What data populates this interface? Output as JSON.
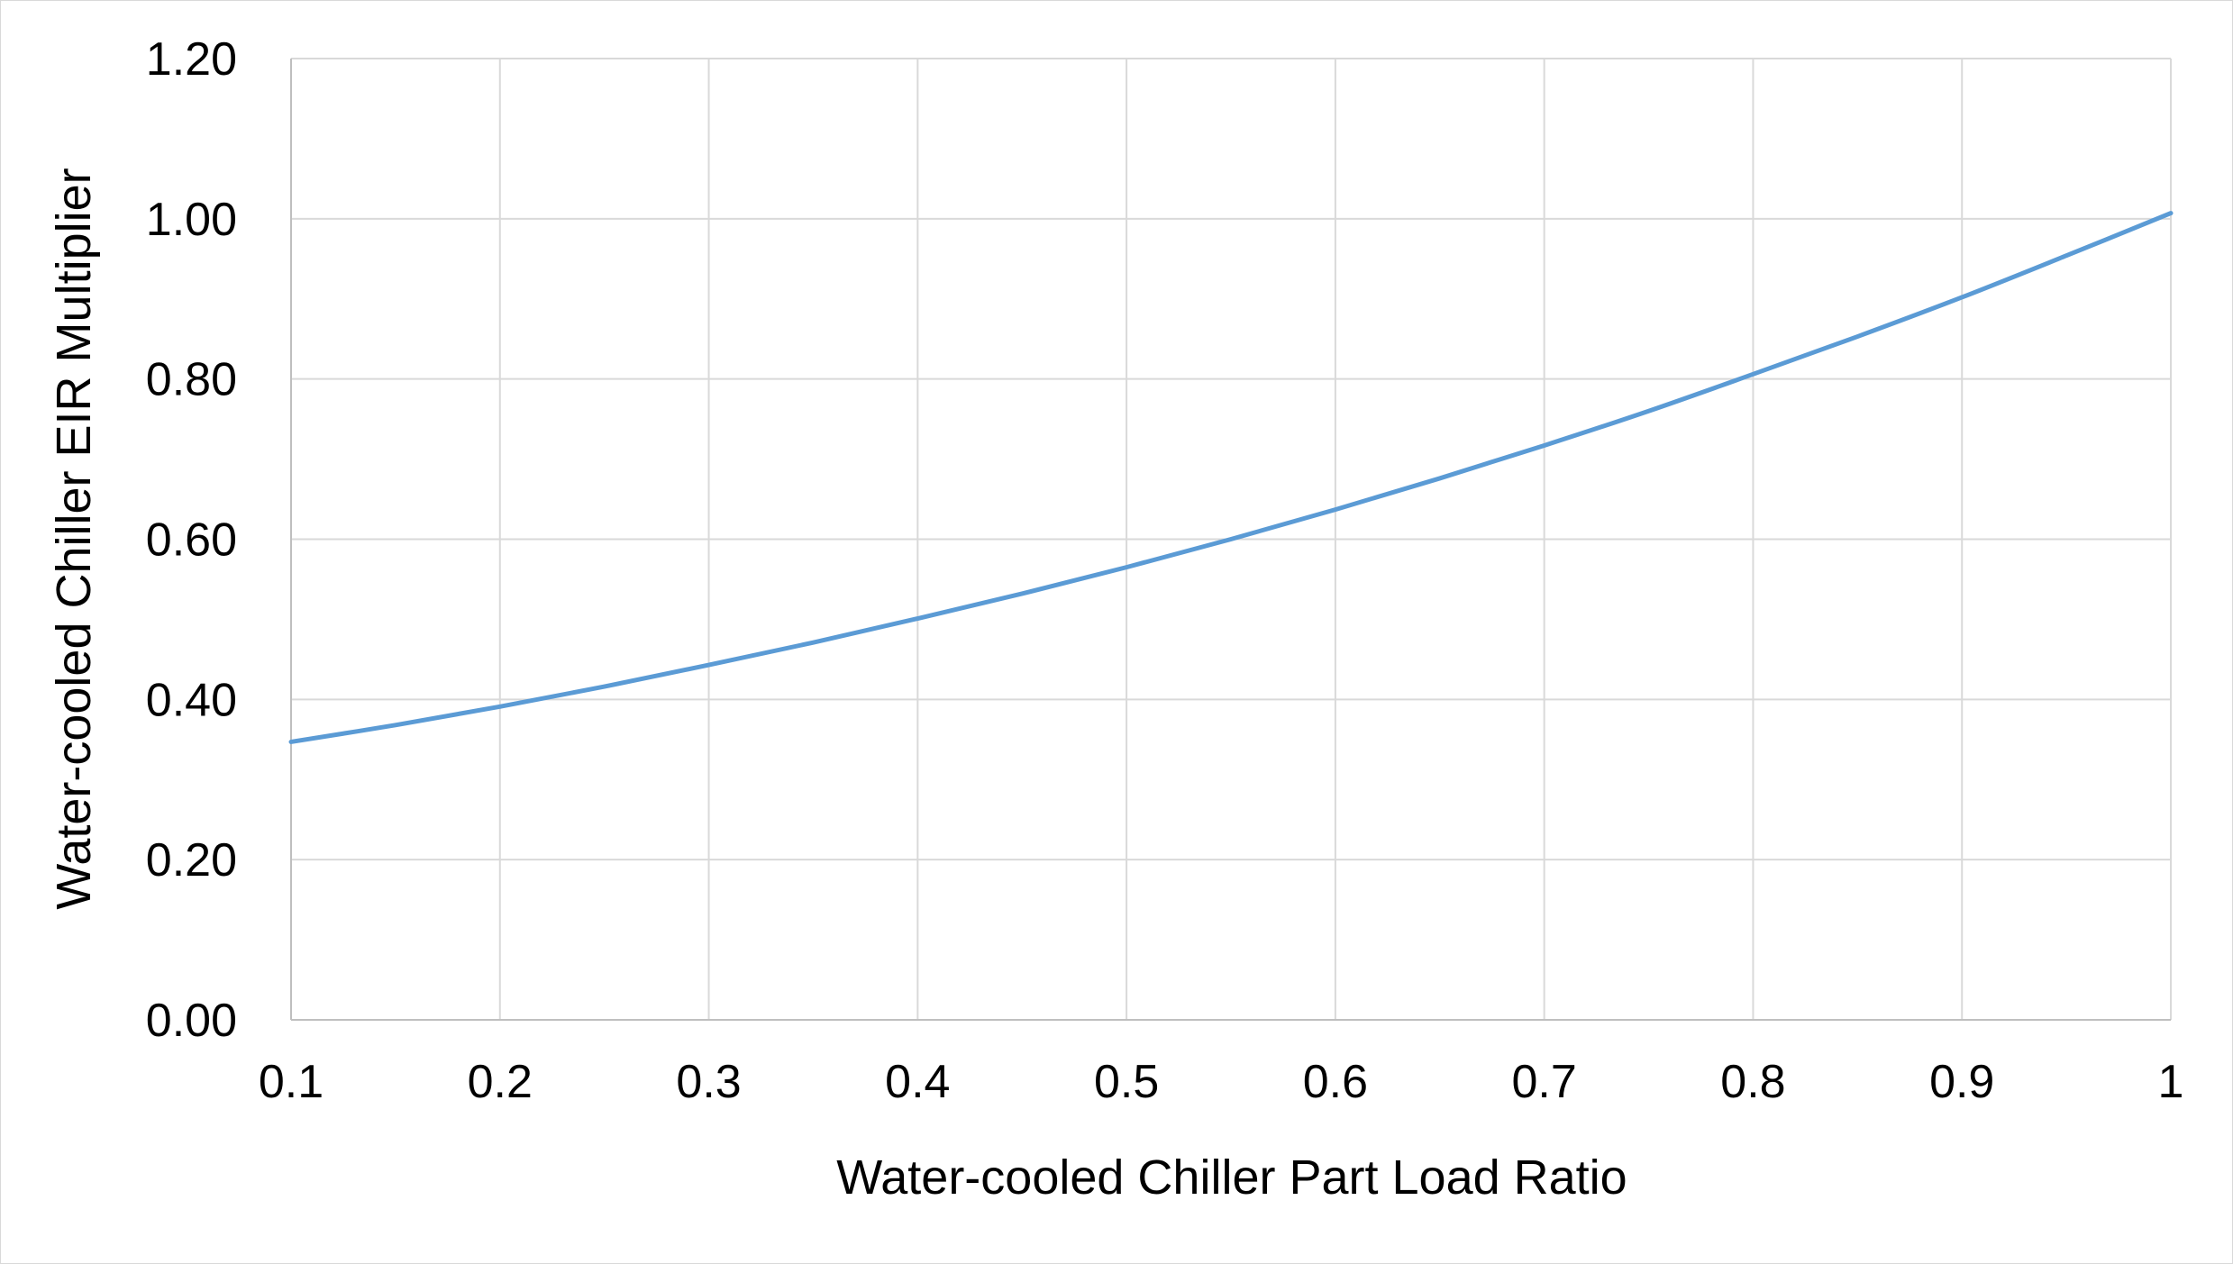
{
  "chart_data": {
    "type": "line",
    "title": "",
    "xlabel": "Water-cooled Chiller Part Load Ratio",
    "ylabel": "Water-cooled Chiller EIR Multiplier",
    "xlim": [
      0.1,
      1
    ],
    "ylim": [
      0,
      1.2
    ],
    "x_ticks": [
      "0.1",
      "0.2",
      "0.3",
      "0.4",
      "0.5",
      "0.6",
      "0.7",
      "0.8",
      "0.9",
      "1"
    ],
    "y_ticks": [
      "0.00",
      "0.20",
      "0.40",
      "0.60",
      "0.80",
      "1.00",
      "1.20"
    ],
    "grid": true,
    "legend": "none",
    "series": [
      {
        "color": "#5b9bd5",
        "x": [
          0.1,
          0.15,
          0.2,
          0.25,
          0.3,
          0.35,
          0.4,
          0.45,
          0.5,
          0.55,
          0.6,
          0.65,
          0.7,
          0.75,
          0.8,
          0.85,
          0.9,
          0.95,
          1.0
        ],
        "y": [
          0.347,
          0.368,
          0.391,
          0.416,
          0.443,
          0.471,
          0.501,
          0.532,
          0.565,
          0.6,
          0.637,
          0.676,
          0.717,
          0.76,
          0.806,
          0.853,
          0.902,
          0.954,
          1.007
        ]
      }
    ]
  }
}
